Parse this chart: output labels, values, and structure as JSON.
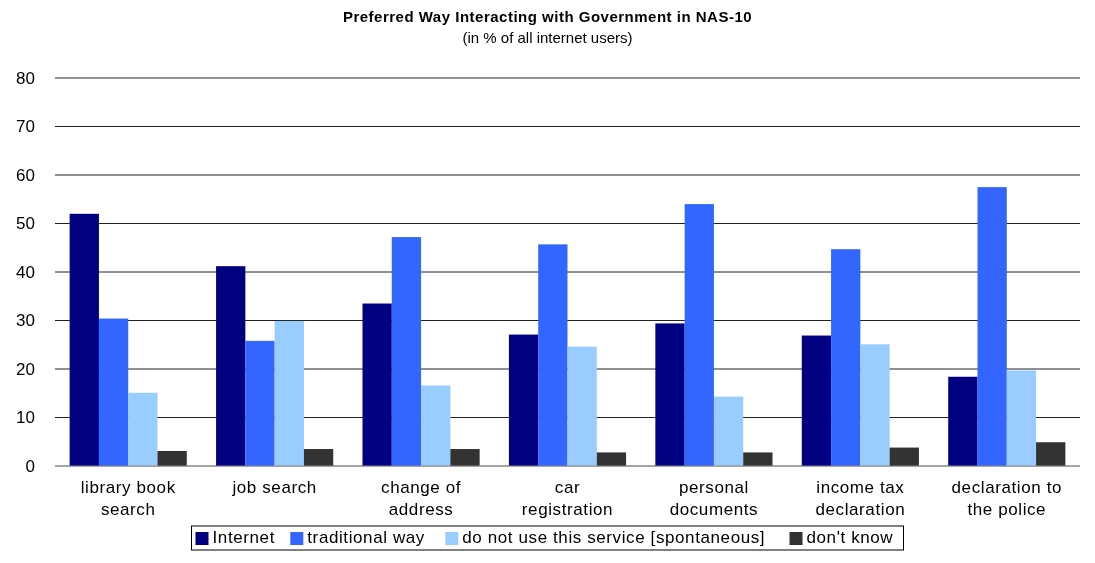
{
  "chart_data": {
    "type": "bar",
    "title": "Preferred Way Interacting with Government in NAS-10",
    "subtitle": "(in % of all internet users)",
    "categories": [
      "library book search",
      "job search",
      "change of address",
      "car registration",
      "personal documents",
      "income tax declaration",
      "declaration to the police"
    ],
    "series": [
      {
        "name": "Internet",
        "color": "#000080",
        "values": [
          52,
          41.2,
          33.5,
          27.1,
          29.4,
          26.9,
          18.4
        ]
      },
      {
        "name": "traditional way",
        "color": "#3366ff",
        "values": [
          30.4,
          25.8,
          47.2,
          45.7,
          54,
          44.7,
          57.5
        ]
      },
      {
        "name": "do not use this service [spontaneous]",
        "color": "#99ccff",
        "values": [
          15.1,
          29.9,
          16.6,
          24.6,
          14.3,
          25.1,
          19.7
        ]
      },
      {
        "name": "don't know",
        "color": "#333333",
        "values": [
          3.1,
          3.5,
          3.5,
          2.8,
          2.8,
          3.8,
          4.9
        ]
      }
    ],
    "ylim": [
      0,
      80
    ],
    "yticks": [
      0,
      10,
      20,
      30,
      40,
      50,
      60,
      70,
      80
    ],
    "grid": "y",
    "legend": "bottom"
  }
}
